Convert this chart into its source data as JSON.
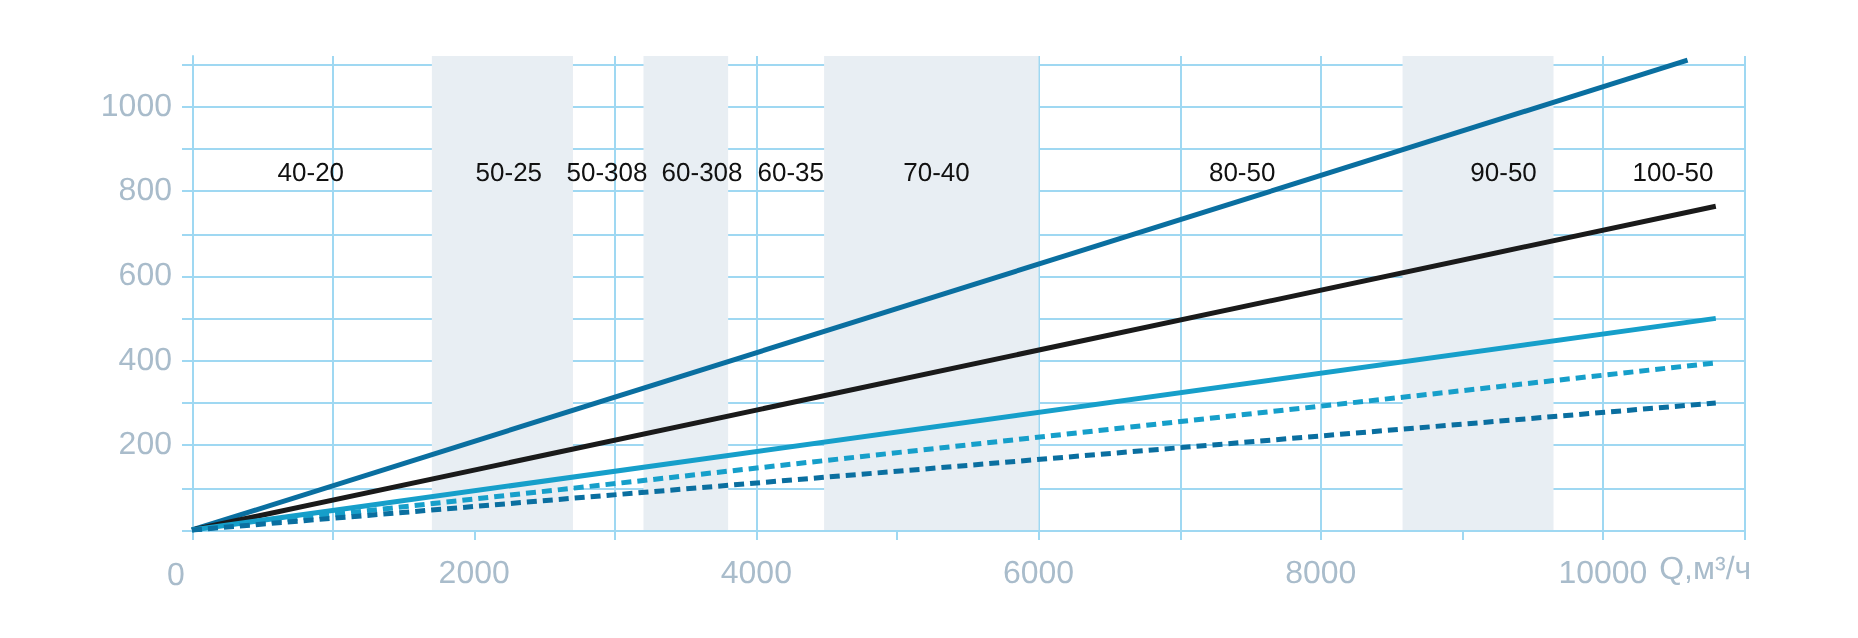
{
  "chart_data": {
    "type": "line",
    "xlabel": "Q,м³/ч",
    "xlim": [
      0,
      11000
    ],
    "ylim": [
      0,
      1120
    ],
    "xticks": [
      0,
      {
        "value": 1000,
        "label": null
      },
      2000,
      {
        "value": 3000,
        "label": null
      },
      4000,
      {
        "value": 5000,
        "label": null
      },
      6000,
      {
        "value": 7000,
        "label": null
      },
      8000,
      {
        "value": 9000,
        "label": null
      },
      10000,
      {
        "value": 11000,
        "label": null
      }
    ],
    "yticks": [
      {
        "value": 0,
        "label": null
      },
      {
        "value": 100,
        "label": null
      },
      200,
      {
        "value": 300,
        "label": null
      },
      400,
      {
        "value": 500,
        "label": null
      },
      600,
      {
        "value": 700,
        "label": null
      },
      800,
      {
        "value": 900,
        "label": null
      },
      1000,
      {
        "value": 1100,
        "label": null
      }
    ],
    "grid": true,
    "marker": "none",
    "series": [
      {
        "color": "#0a6fa0",
        "x": [
          0,
          10600
        ],
        "values": [
          0,
          1110
        ],
        "line_style": "solid"
      },
      {
        "color": "#1a1a1a",
        "x": [
          0,
          10800
        ],
        "values": [
          0,
          765
        ],
        "line_style": "solid"
      },
      {
        "color": "#169fca",
        "x": [
          0,
          10800
        ],
        "values": [
          0,
          500
        ],
        "line_style": "solid"
      },
      {
        "color": "#169fca",
        "x": [
          0,
          10800
        ],
        "values": [
          0,
          395
        ],
        "line_style": "dashed"
      },
      {
        "color": "#0a6fa0",
        "x": [
          0,
          10800
        ],
        "values": [
          0,
          300
        ],
        "line_style": "dashed"
      }
    ],
    "bands": [
      {
        "axis": "x",
        "from": 1700,
        "to": 2700,
        "label": null,
        "color": "#e8eef3"
      },
      {
        "axis": "x",
        "from": 3200,
        "to": 3800,
        "label": null,
        "color": "#e8eef3"
      },
      {
        "axis": "x",
        "from": 4480,
        "to": 6000,
        "label": null,
        "color": "#e8eef3"
      },
      {
        "axis": "x",
        "from": 8580,
        "to": 9650,
        "label": null,
        "color": "#e8eef3"
      }
    ],
    "annotations": [
      "40-20",
      "50-25",
      "50-308",
      "60-308",
      "60-35",
      "70-40",
      "80-50",
      "90-50",
      "100-50"
    ]
  }
}
